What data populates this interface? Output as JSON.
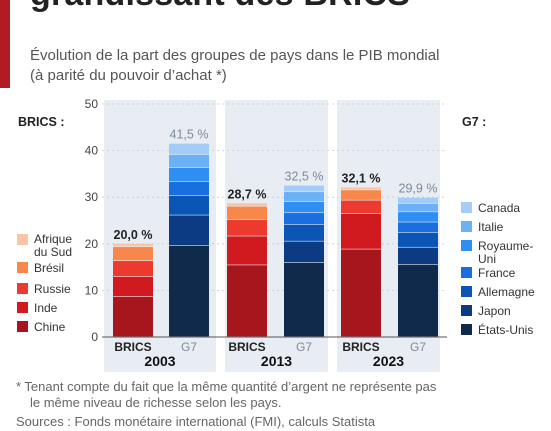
{
  "header": {
    "title_visible": "grandissant des BRICS",
    "subtitle": "Évolution de la part des groupes de pays dans le PIB mondial (à parité du pouvoir d’achat *)"
  },
  "legend_titles": {
    "left": "BRICS :",
    "right": "G7 :"
  },
  "footnote": {
    "line1": "* Tenant compte du fait que la même quantité d’argent ne représente pas",
    "line2": "le même niveau de richesse selon les pays."
  },
  "sources": "Sources : Fonds monétaire international (FMI), calculs Statista",
  "colors": {
    "accent": "#b31b24",
    "panel": "#e8edf4"
  },
  "chart_data": {
    "type": "bar",
    "stacked": true,
    "ylim": [
      0,
      50
    ],
    "yticks": [
      0,
      10,
      20,
      30,
      40,
      50
    ],
    "years": [
      "2003",
      "2013",
      "2023"
    ],
    "groups": [
      "BRICS",
      "G7"
    ],
    "totals": {
      "BRICS": [
        "20,0 %",
        "28,7 %",
        "32,1 %"
      ],
      "G7": [
        "41,5 %",
        "32,5 %",
        "29,9 %"
      ]
    },
    "series_brics": [
      {
        "name": "Chine",
        "color": "#a8161d",
        "values": [
          8.6,
          15.4,
          18.8
        ]
      },
      {
        "name": "Inde",
        "color": "#d11a20",
        "values": [
          4.3,
          6.2,
          7.6
        ]
      },
      {
        "name": "Russie",
        "color": "#ec3a2e",
        "values": [
          3.4,
          3.5,
          2.9
        ]
      },
      {
        "name": "Brésil",
        "color": "#f7874b",
        "values": [
          3.0,
          2.9,
          2.2
        ]
      },
      {
        "name": "Afrique du Sud",
        "color": "#fbc4a6",
        "values": [
          0.7,
          0.7,
          0.6
        ]
      }
    ],
    "series_g7": [
      {
        "name": "États-Unis",
        "color": "#0f2a4a",
        "values": [
          19.6,
          15.9,
          15.5
        ]
      },
      {
        "name": "Japon",
        "color": "#0c3b84",
        "values": [
          6.5,
          4.6,
          3.7
        ]
      },
      {
        "name": "Allemagne",
        "color": "#0b55b5",
        "values": [
          4.2,
          3.6,
          3.2
        ]
      },
      {
        "name": "France",
        "color": "#1a6fe0",
        "values": [
          3.0,
          2.5,
          2.2
        ]
      },
      {
        "name": "Royaume-Uni",
        "color": "#2e8ef2",
        "values": [
          3.0,
          2.4,
          2.2
        ]
      },
      {
        "name": "Italie",
        "color": "#6cb0f5",
        "values": [
          2.8,
          2.1,
          1.8
        ]
      },
      {
        "name": "Canada",
        "color": "#a3cdf8",
        "values": [
          2.4,
          1.4,
          1.3
        ]
      }
    ],
    "legend_left": [
      {
        "label": "Afrique du Sud",
        "color": "#fbc4a6"
      },
      {
        "label": "Brésil",
        "color": "#f7874b"
      },
      {
        "label": "Russie",
        "color": "#ec3a2e"
      },
      {
        "label": "Inde",
        "color": "#d11a20"
      },
      {
        "label": "Chine",
        "color": "#a8161d"
      }
    ],
    "legend_right": [
      {
        "label": "Canada",
        "color": "#a3cdf8"
      },
      {
        "label": "Italie",
        "color": "#6cb0f5"
      },
      {
        "label": "Royaume-Uni",
        "color": "#2e8ef2"
      },
      {
        "label": "France",
        "color": "#1a6fe0"
      },
      {
        "label": "Allemagne",
        "color": "#0b55b5"
      },
      {
        "label": "Japon",
        "color": "#0c3b84"
      },
      {
        "label": "États-Unis",
        "color": "#0f2a4a"
      }
    ]
  }
}
